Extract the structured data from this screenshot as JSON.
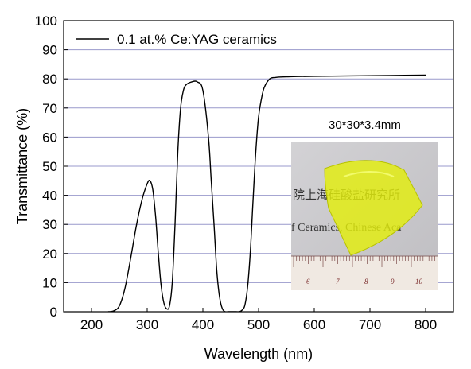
{
  "chart_data": {
    "type": "line",
    "title": "",
    "xlabel": "Wavelength (nm)",
    "ylabel": "Transmittance (%)",
    "xlim": [
      150,
      850
    ],
    "ylim": [
      0,
      100
    ],
    "xticks": [
      200,
      300,
      400,
      500,
      600,
      700,
      800
    ],
    "yticks": [
      0,
      10,
      20,
      30,
      40,
      50,
      60,
      70,
      80,
      90,
      100
    ],
    "grid": "horizontal",
    "legend_position": "top-left",
    "series": [
      {
        "name": "0.1 at.% Ce:YAG ceramics",
        "color": "#000000",
        "x": [
          230,
          240,
          250,
          260,
          270,
          280,
          290,
          300,
          305,
          310,
          315,
          320,
          325,
          330,
          335,
          340,
          345,
          350,
          355,
          360,
          365,
          370,
          380,
          390,
          400,
          410,
          415,
          420,
          425,
          430,
          435,
          440,
          445,
          450,
          455,
          460,
          465,
          470,
          475,
          480,
          485,
          490,
          495,
          500,
          505,
          510,
          520,
          530,
          550,
          600,
          700,
          800
        ],
        "y": [
          0,
          0.3,
          2,
          8,
          18,
          29,
          38,
          44,
          45,
          42,
          33,
          20,
          9,
          3,
          1,
          2,
          10,
          30,
          55,
          70,
          76,
          78,
          79,
          79,
          76,
          60,
          45,
          30,
          14,
          5,
          1,
          0,
          0,
          0,
          0,
          0,
          0,
          0.5,
          2,
          8,
          20,
          38,
          55,
          67,
          73,
          77,
          80,
          80.5,
          80.7,
          80.9,
          81.1,
          81.3
        ]
      }
    ]
  },
  "annotation": "30*30*3.4mm",
  "photo": {
    "line1": "院上海硅酸盐研究所",
    "line2": "f Ceramics, Chinese Aca",
    "ruler_numbers": [
      "6",
      "7",
      "8",
      "9",
      "10"
    ]
  },
  "colors": {
    "sample": "#e6f200",
    "photo_bg": "#c9c8cb",
    "grid": "#9999cc"
  }
}
